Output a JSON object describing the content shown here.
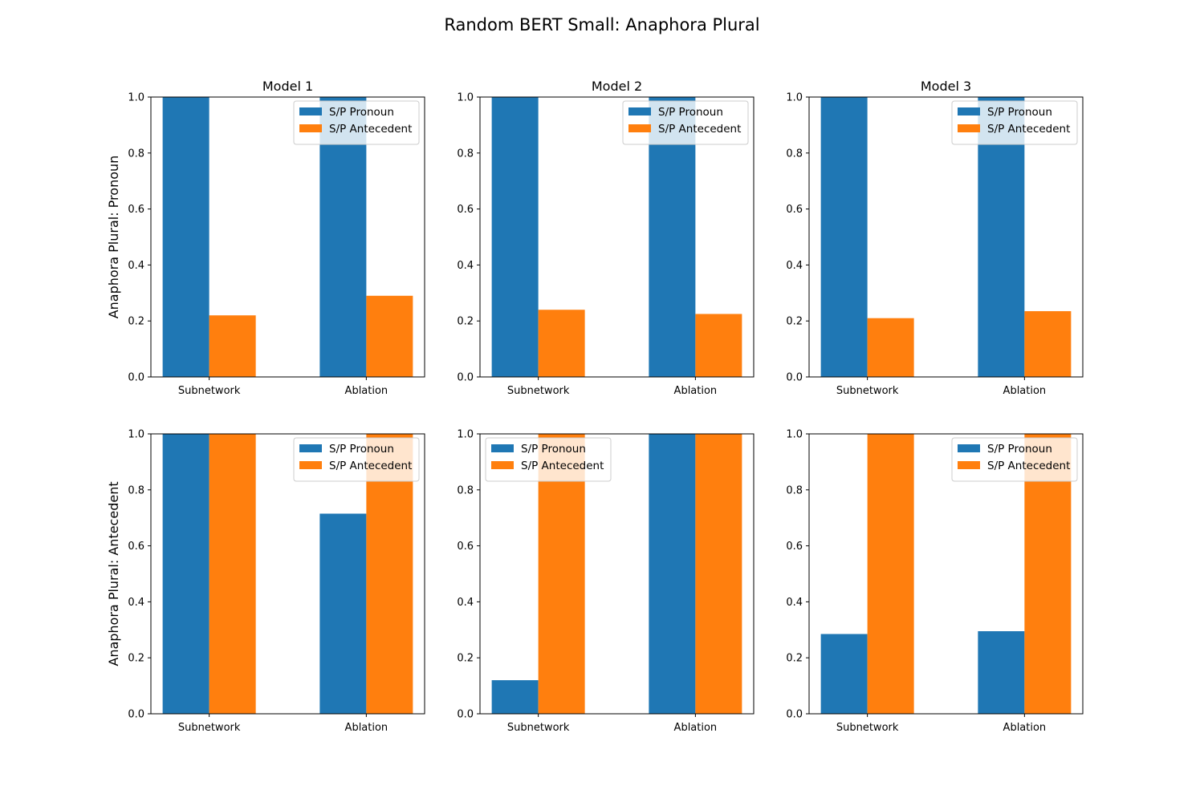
{
  "chart_data": {
    "type": "bar",
    "title": "Random BERT Small: Anaphora Plural",
    "categories": [
      "Subnetwork",
      "Ablation"
    ],
    "ylim": [
      0,
      1
    ],
    "yticks": [
      "0.0",
      "0.2",
      "0.4",
      "0.6",
      "0.8",
      "1.0"
    ],
    "grid": false,
    "series_colors": [
      "#1f77b4",
      "#ff7f0e"
    ],
    "series_names": [
      "S/P Pronoun",
      "S/P Antecedent"
    ],
    "row_labels": [
      "Anaphora Plural: Pronoun",
      "Anaphora Plural: Antecedent"
    ],
    "column_titles": [
      "Model 1",
      "Model 2",
      "Model 3"
    ],
    "panels": [
      {
        "row": 0,
        "col": 0,
        "legend": "top-right",
        "series": [
          {
            "name": "S/P Pronoun",
            "values": [
              1.0,
              1.0
            ]
          },
          {
            "name": "S/P Antecedent",
            "values": [
              0.22,
              0.29
            ]
          }
        ]
      },
      {
        "row": 0,
        "col": 1,
        "legend": "top-right",
        "series": [
          {
            "name": "S/P Pronoun",
            "values": [
              1.0,
              1.0
            ]
          },
          {
            "name": "S/P Antecedent",
            "values": [
              0.24,
              0.225
            ]
          }
        ]
      },
      {
        "row": 0,
        "col": 2,
        "legend": "top-right",
        "series": [
          {
            "name": "S/P Pronoun",
            "values": [
              1.0,
              1.0
            ]
          },
          {
            "name": "S/P Antecedent",
            "values": [
              0.21,
              0.235
            ]
          }
        ]
      },
      {
        "row": 1,
        "col": 0,
        "legend": "top-right",
        "series": [
          {
            "name": "S/P Pronoun",
            "values": [
              1.0,
              0.715
            ]
          },
          {
            "name": "S/P Antecedent",
            "values": [
              1.0,
              1.0
            ]
          }
        ]
      },
      {
        "row": 1,
        "col": 1,
        "legend": "top-left",
        "series": [
          {
            "name": "S/P Pronoun",
            "values": [
              0.12,
              1.0
            ]
          },
          {
            "name": "S/P Antecedent",
            "values": [
              1.0,
              1.0
            ]
          }
        ]
      },
      {
        "row": 1,
        "col": 2,
        "legend": "top-right",
        "series": [
          {
            "name": "S/P Pronoun",
            "values": [
              0.285,
              0.295
            ]
          },
          {
            "name": "S/P Antecedent",
            "values": [
              1.0,
              1.0
            ]
          }
        ]
      }
    ]
  }
}
